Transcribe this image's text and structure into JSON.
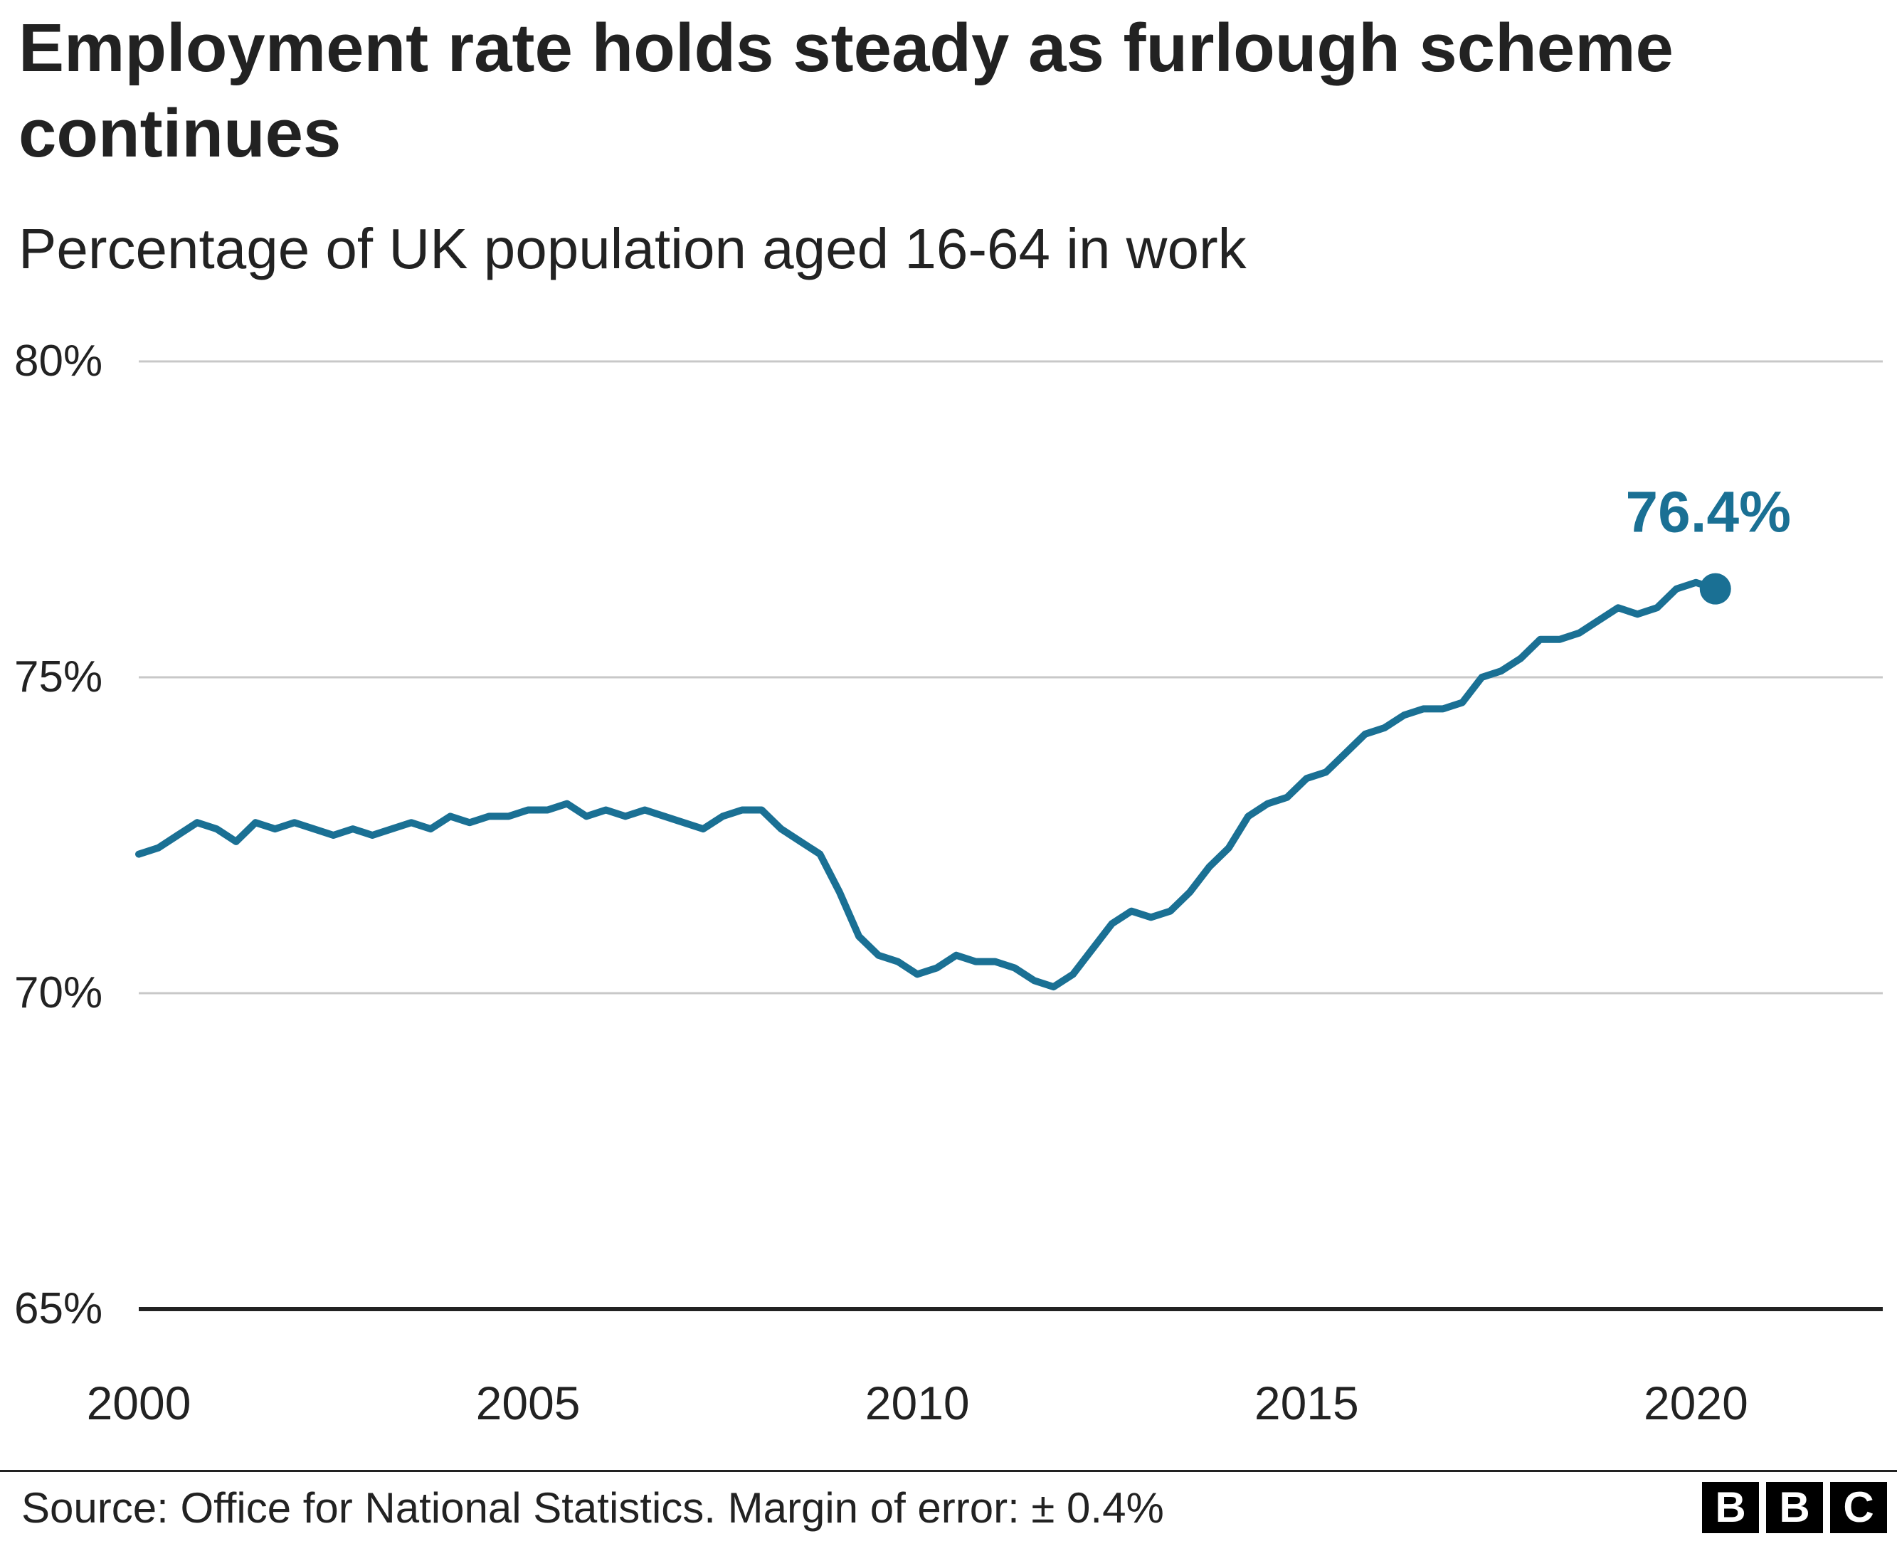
{
  "chart_data": {
    "type": "line",
    "title": "Employment rate holds steady as furlough scheme continues",
    "subtitle": "Percentage of UK population aged 16-64 in work",
    "ylim": [
      65,
      80
    ],
    "xlim": [
      2000,
      2022.4
    ],
    "yticks": [
      65,
      70,
      75,
      80
    ],
    "ytick_labels": [
      "65%",
      "70%",
      "75%",
      "80%"
    ],
    "xticks": [
      2000,
      2005,
      2010,
      2015,
      2020
    ],
    "xtick_labels": [
      "2000",
      "2005",
      "2010",
      "2015",
      "2020"
    ],
    "grid": true,
    "series": [
      {
        "color": "#1a7094",
        "points": [
          [
            2000.0,
            72.2
          ],
          [
            2000.25,
            72.3
          ],
          [
            2000.5,
            72.5
          ],
          [
            2000.75,
            72.7
          ],
          [
            2001.0,
            72.6
          ],
          [
            2001.25,
            72.4
          ],
          [
            2001.5,
            72.7
          ],
          [
            2001.75,
            72.6
          ],
          [
            2002.0,
            72.7
          ],
          [
            2002.25,
            72.6
          ],
          [
            2002.5,
            72.5
          ],
          [
            2002.75,
            72.6
          ],
          [
            2003.0,
            72.5
          ],
          [
            2003.25,
            72.6
          ],
          [
            2003.5,
            72.7
          ],
          [
            2003.75,
            72.6
          ],
          [
            2004.0,
            72.8
          ],
          [
            2004.25,
            72.7
          ],
          [
            2004.5,
            72.8
          ],
          [
            2004.75,
            72.8
          ],
          [
            2005.0,
            72.9
          ],
          [
            2005.25,
            72.9
          ],
          [
            2005.5,
            73.0
          ],
          [
            2005.75,
            72.8
          ],
          [
            2006.0,
            72.9
          ],
          [
            2006.25,
            72.8
          ],
          [
            2006.5,
            72.9
          ],
          [
            2006.75,
            72.8
          ],
          [
            2007.0,
            72.7
          ],
          [
            2007.25,
            72.6
          ],
          [
            2007.5,
            72.8
          ],
          [
            2007.75,
            72.9
          ],
          [
            2008.0,
            72.9
          ],
          [
            2008.25,
            72.6
          ],
          [
            2008.5,
            72.4
          ],
          [
            2008.75,
            72.2
          ],
          [
            2009.0,
            71.6
          ],
          [
            2009.25,
            70.9
          ],
          [
            2009.5,
            70.6
          ],
          [
            2009.75,
            70.5
          ],
          [
            2010.0,
            70.3
          ],
          [
            2010.25,
            70.4
          ],
          [
            2010.5,
            70.6
          ],
          [
            2010.75,
            70.5
          ],
          [
            2011.0,
            70.5
          ],
          [
            2011.25,
            70.4
          ],
          [
            2011.5,
            70.2
          ],
          [
            2011.75,
            70.1
          ],
          [
            2012.0,
            70.3
          ],
          [
            2012.25,
            70.7
          ],
          [
            2012.5,
            71.1
          ],
          [
            2012.75,
            71.3
          ],
          [
            2013.0,
            71.2
          ],
          [
            2013.25,
            71.3
          ],
          [
            2013.5,
            71.6
          ],
          [
            2013.75,
            72.0
          ],
          [
            2014.0,
            72.3
          ],
          [
            2014.25,
            72.8
          ],
          [
            2014.5,
            73.0
          ],
          [
            2014.75,
            73.1
          ],
          [
            2015.0,
            73.4
          ],
          [
            2015.25,
            73.5
          ],
          [
            2015.5,
            73.8
          ],
          [
            2015.75,
            74.1
          ],
          [
            2016.0,
            74.2
          ],
          [
            2016.25,
            74.4
          ],
          [
            2016.5,
            74.5
          ],
          [
            2016.75,
            74.5
          ],
          [
            2017.0,
            74.6
          ],
          [
            2017.25,
            75.0
          ],
          [
            2017.5,
            75.1
          ],
          [
            2017.75,
            75.3
          ],
          [
            2018.0,
            75.6
          ],
          [
            2018.25,
            75.6
          ],
          [
            2018.5,
            75.7
          ],
          [
            2018.75,
            75.9
          ],
          [
            2019.0,
            76.1
          ],
          [
            2019.25,
            76.0
          ],
          [
            2019.5,
            76.1
          ],
          [
            2019.75,
            76.4
          ],
          [
            2020.0,
            76.5
          ],
          [
            2020.25,
            76.4
          ]
        ]
      }
    ],
    "annotation": {
      "label": "76.4%",
      "x": 2020.25,
      "y": 76.4
    },
    "source": "Source: Office for National Statistics. Margin of error: ± 0.4%"
  },
  "logo": [
    "B",
    "B",
    "C"
  ]
}
